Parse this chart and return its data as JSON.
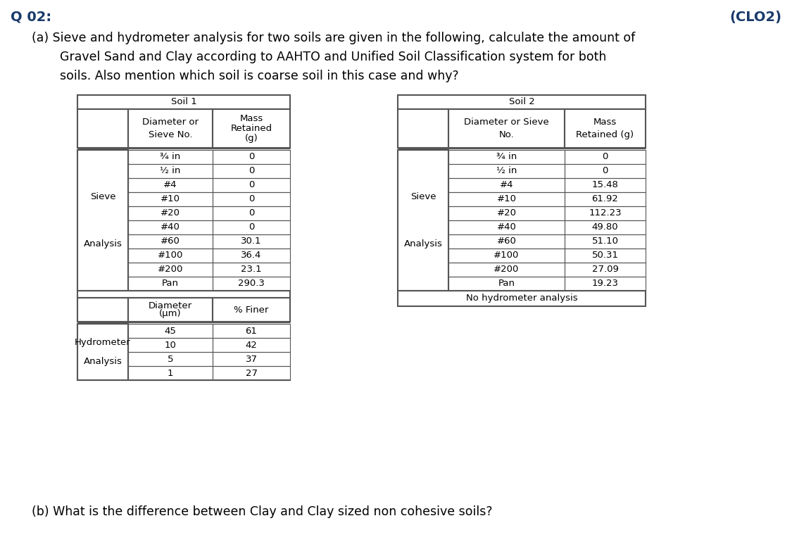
{
  "title_left": "Q 02:",
  "title_right": "(CLO2)",
  "text_a": "(a) Sieve and hydrometer analysis for two soils are given in the following, calculate the amount of",
  "text_a2": "Gravel Sand and Clay according to AAHTO and Unified Soil Classification system for both",
  "text_a3": "soils. Also mention which soil is coarse soil in this case and why?",
  "text_b": "(b) What is the difference between Clay and Clay sized non cohesive soils?",
  "soil1_title": "Soil 1",
  "soil1_col1_header_lines": [
    "Diameter or",
    "Sieve No."
  ],
  "soil1_col2_header_lines": [
    "Mass",
    "Retained",
    "(g)"
  ],
  "soil1_row_label": [
    "Sieve",
    "Analysis"
  ],
  "soil1_sieve_rows": [
    [
      "¾ in",
      "0"
    ],
    [
      "½ in",
      "0"
    ],
    [
      "#4",
      "0"
    ],
    [
      "#10",
      "0"
    ],
    [
      "#20",
      "0"
    ],
    [
      "#40",
      "0"
    ],
    [
      "#60",
      "30.1"
    ],
    [
      "#100",
      "36.4"
    ],
    [
      "#200",
      "23.1"
    ],
    [
      "Pan",
      "290.3"
    ]
  ],
  "soil1_hydro_label": [
    "Hydrometer",
    "Analysis"
  ],
  "soil1_hydro_col1_header_lines": [
    "Diameter",
    "(μm)"
  ],
  "soil1_hydro_col2_header": "% Finer",
  "soil1_hydro_rows": [
    [
      "45",
      "61"
    ],
    [
      "10",
      "42"
    ],
    [
      "5",
      "37"
    ],
    [
      "1",
      "27"
    ]
  ],
  "soil2_title": "Soil 2",
  "soil2_col1_header_lines": [
    "Diameter or Sieve",
    "No."
  ],
  "soil2_col2_header_lines": [
    "Mass",
    "Retained (g)"
  ],
  "soil2_row_label": [
    "Sieve",
    "Analysis"
  ],
  "soil2_sieve_rows": [
    [
      "¾ in",
      "0"
    ],
    [
      "½ in",
      "0"
    ],
    [
      "#4",
      "15.48"
    ],
    [
      "#10",
      "61.92"
    ],
    [
      "#20",
      "112.23"
    ],
    [
      "#40",
      "49.80"
    ],
    [
      "#60",
      "51.10"
    ],
    [
      "#100",
      "50.31"
    ],
    [
      "#200",
      "27.09"
    ],
    [
      "Pan",
      "19.23"
    ]
  ],
  "soil2_no_hydro": "No hydrometer analysis",
  "bg_color": "#ffffff",
  "text_color": "#1a3a6b",
  "table_text_color": "#000000",
  "line_color": "#555555"
}
